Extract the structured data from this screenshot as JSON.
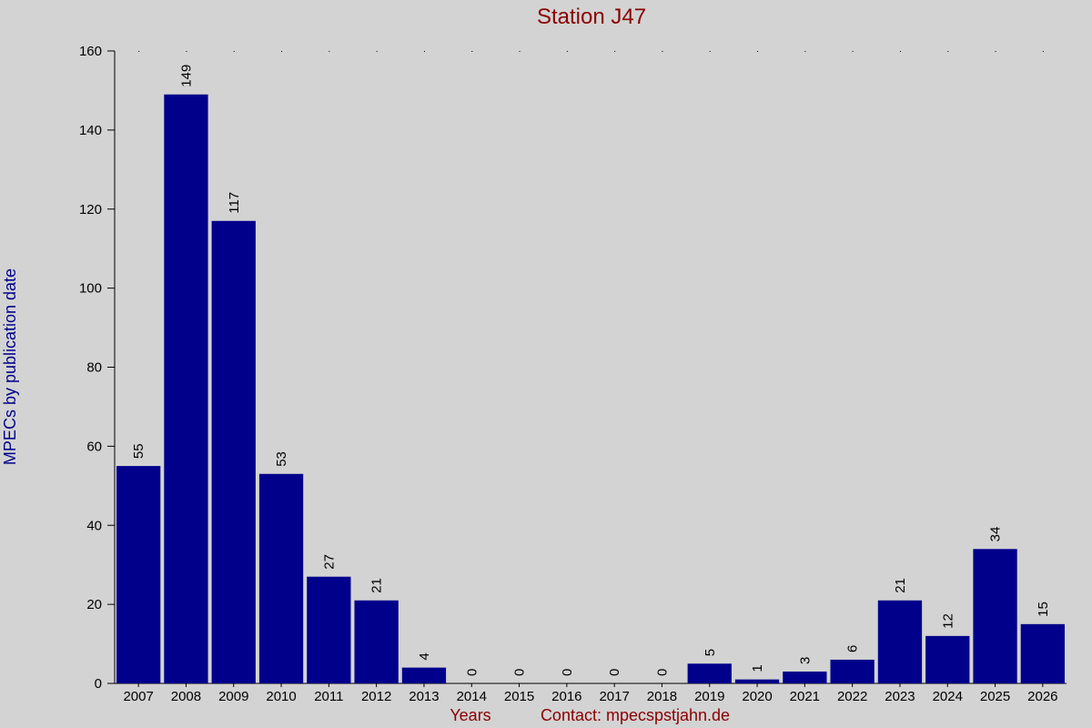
{
  "chart_data": {
    "type": "bar",
    "title": "Station J47",
    "xlabel": "Years",
    "ylabel": "MPECs by publication date",
    "contact": "Contact: mpecspstjahn.de",
    "categories": [
      "2007",
      "2008",
      "2009",
      "2010",
      "2011",
      "2012",
      "2013",
      "2014",
      "2015",
      "2016",
      "2017",
      "2018",
      "2019",
      "2020",
      "2021",
      "2022",
      "2023",
      "2024",
      "2025",
      "2026"
    ],
    "values": [
      55,
      149,
      117,
      53,
      27,
      21,
      4,
      0,
      0,
      0,
      0,
      0,
      5,
      1,
      3,
      6,
      21,
      12,
      34,
      15
    ],
    "ylim": [
      0,
      160
    ],
    "yticks": [
      0,
      20,
      40,
      60,
      80,
      100,
      120,
      140,
      160
    ],
    "bar_color": "#00008b",
    "background_color": "#d3d3d3",
    "title_color": "#8b0000",
    "ylabel_color": "#00008b",
    "grid": false
  }
}
